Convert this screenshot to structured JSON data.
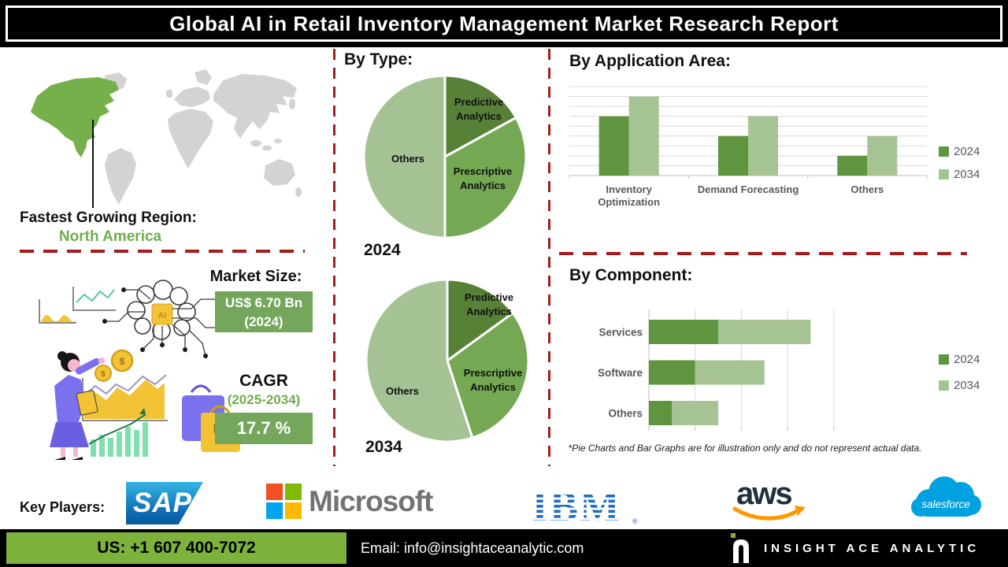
{
  "title": "Global AI in Retail Inventory Management Market Research Report",
  "region": {
    "label": "Fastest Growing Region:",
    "value": "North America"
  },
  "market_size": {
    "label": "Market Size:",
    "value": "US$ 6.70 Bn",
    "year": "(2024)"
  },
  "cagr": {
    "label": "CAGR",
    "period": "(2025-2034)",
    "value": "17.7 %"
  },
  "headings": {
    "by_type": "By Type:",
    "by_application": "By  Application Area:",
    "by_component": "By Component:"
  },
  "disclaimer": "*Pie Charts and Bar Graphs are for illustration only and do not represent actual data.",
  "key_players": {
    "label": "Key Players:",
    "companies": [
      {
        "name": "SAP"
      },
      {
        "name": "Microsoft"
      },
      {
        "name": "IBM"
      },
      {
        "name": "aws"
      },
      {
        "name": "salesforce"
      }
    ]
  },
  "footer": {
    "phone": "US: +1 607 400-7072",
    "email": "Email: info@insightaceanalytic.com",
    "brand": "INSIGHT ACE ANALYTIC"
  },
  "illustration": {
    "chip_label": "AI",
    "coin_symbol": "$"
  },
  "colors": {
    "pie_green_dark": "#588138",
    "pie_green_mid": "#74a853",
    "pie_green_light": "#a5c295",
    "bar_green_2024": "#5f953e",
    "bar_green_2034": "#a6c493",
    "highlight_box_green": "#74a65c",
    "region_text_green": "#6fae4d",
    "map_highlight_green": "#76b04b",
    "map_gray": "#d3d3d3",
    "dashed_line_red": "#a51c1c",
    "footer_green": "#7db33d",
    "title_bar_black": "#000000"
  },
  "chart_data": [
    {
      "id": "by_type_2024",
      "type": "pie",
      "year": "2024",
      "slices": [
        {
          "label": "Predictive Analytics",
          "value": 17,
          "color": "#588138"
        },
        {
          "label": "Prescriptive Analytics",
          "value": 33,
          "color": "#74a853"
        },
        {
          "label": "Others",
          "value": 50,
          "color": "#a5c295"
        }
      ],
      "start": "top-clockwise"
    },
    {
      "id": "by_type_2034",
      "type": "pie",
      "year": "2034",
      "slices": [
        {
          "label": "Predictive Analytics",
          "value": 15,
          "color": "#588138"
        },
        {
          "label": "Prescriptive Analytics",
          "value": 30,
          "color": "#74a853"
        },
        {
          "label": "Others",
          "value": 55,
          "color": "#a5c295"
        }
      ],
      "start": "top-clockwise"
    },
    {
      "id": "by_application",
      "type": "bar",
      "title": "By  Application Area:",
      "categories": [
        "Inventory\nOptimization",
        "Demand Forecasting",
        "Others"
      ],
      "series": [
        {
          "name": "2024",
          "color": "#5f953e",
          "values": [
            6,
            4,
            2
          ]
        },
        {
          "name": "2034",
          "color": "#a6c493",
          "values": [
            8,
            6,
            4
          ]
        }
      ],
      "ylim": [
        0,
        9
      ],
      "grid": true,
      "legend_position": "right"
    },
    {
      "id": "by_component",
      "type": "stacked_hbar",
      "title": "By Component:",
      "categories": [
        "Services",
        "Software",
        "Others"
      ],
      "series": [
        {
          "name": "2024",
          "color": "#5f953e",
          "values": [
            1.5,
            1.0,
            0.5
          ]
        },
        {
          "name": "2034",
          "color": "#a6c493",
          "values": [
            2.0,
            1.5,
            1.0
          ]
        }
      ],
      "xlim": [
        0,
        4
      ],
      "grid": true,
      "legend_position": "right"
    }
  ]
}
